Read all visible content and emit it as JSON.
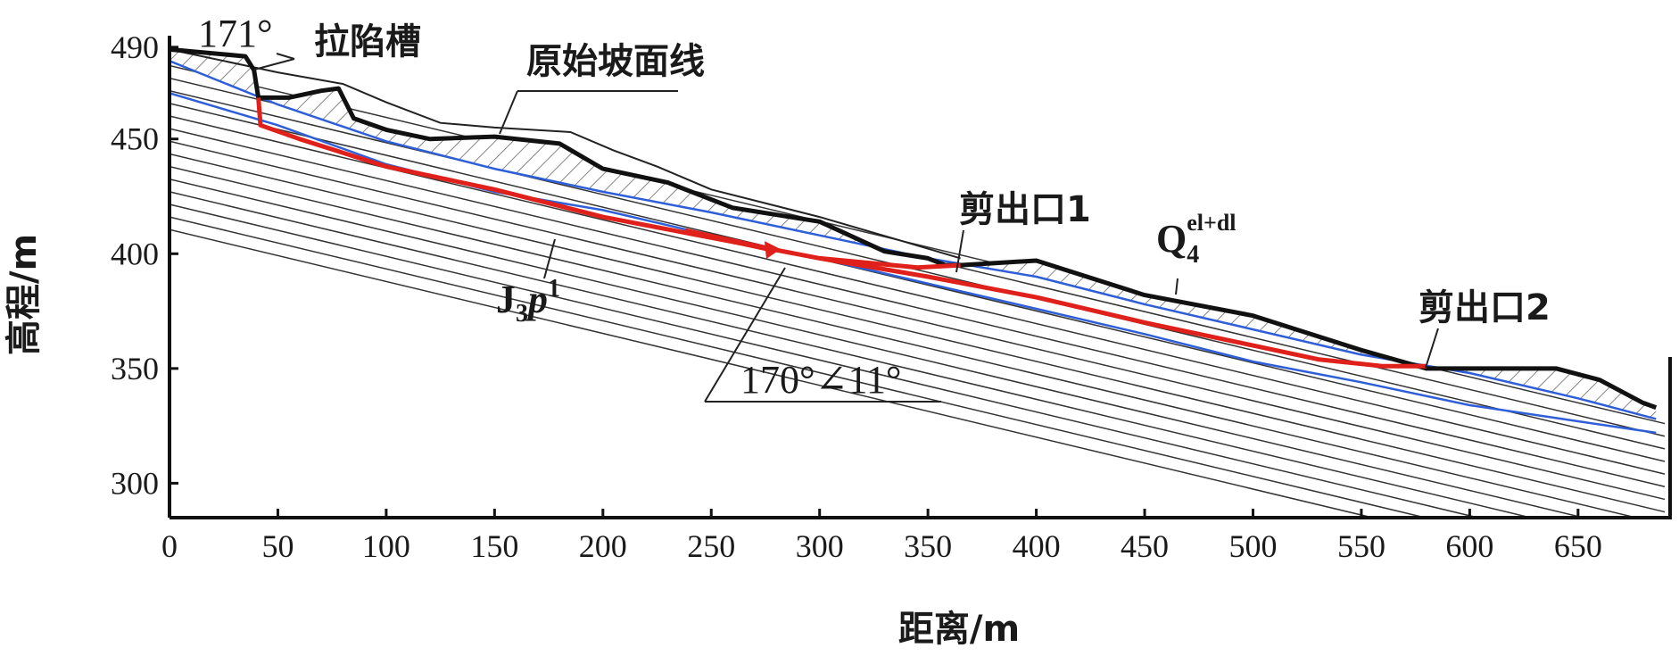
{
  "axes": {
    "x_title": "距离/m",
    "y_title": "高程/m",
    "x_ticks": [
      0,
      50,
      100,
      150,
      200,
      250,
      300,
      350,
      400,
      450,
      500,
      550,
      600,
      650
    ],
    "y_ticks": [
      490,
      450,
      400,
      350,
      300
    ],
    "x_range": [
      0,
      690
    ],
    "y_range": [
      285,
      495
    ]
  },
  "labels": {
    "tension_trough": "拉陷槽",
    "angle_top": "171°",
    "original_slope": "原始坡面线",
    "shear_exit_1": "剪出口1",
    "shear_exit_2": "剪出口2",
    "bedding_attitude": "170°∠11°",
    "formation_base": "J",
    "formation_sub": "3",
    "formation_italic": "p",
    "formation_sup": "1",
    "quaternary_base": "Q",
    "quaternary_sub": "4",
    "quaternary_sup": "el+dl"
  },
  "profile": {
    "ground_surface": [
      [
        0,
        489
      ],
      [
        35,
        486
      ],
      [
        39,
        480
      ],
      [
        41,
        468
      ],
      [
        55,
        468
      ],
      [
        70,
        471
      ],
      [
        78,
        472
      ],
      [
        85,
        459
      ],
      [
        100,
        454
      ],
      [
        120,
        450
      ],
      [
        150,
        451
      ],
      [
        180,
        448
      ],
      [
        200,
        437
      ],
      [
        230,
        431
      ],
      [
        260,
        420
      ],
      [
        300,
        414
      ],
      [
        330,
        401
      ],
      [
        350,
        398
      ],
      [
        358,
        395
      ],
      [
        365,
        395
      ],
      [
        400,
        397
      ],
      [
        450,
        382
      ],
      [
        500,
        373
      ],
      [
        550,
        358
      ],
      [
        580,
        350
      ],
      [
        610,
        350
      ],
      [
        640,
        350
      ],
      [
        660,
        345
      ],
      [
        680,
        335
      ],
      [
        686,
        333
      ]
    ],
    "original_slope": [
      [
        0,
        489
      ],
      [
        50,
        479
      ],
      [
        80,
        474
      ],
      [
        100,
        466
      ],
      [
        125,
        457
      ],
      [
        150,
        455
      ],
      [
        185,
        453
      ],
      [
        205,
        445
      ],
      [
        225,
        438
      ],
      [
        250,
        428
      ],
      [
        300,
        416
      ],
      [
        340,
        405
      ],
      [
        365,
        398
      ]
    ],
    "sliding_surface_1": [
      [
        41,
        468
      ],
      [
        42,
        456
      ],
      [
        60,
        450
      ],
      [
        100,
        438
      ],
      [
        150,
        428
      ],
      [
        200,
        416
      ],
      [
        250,
        407
      ],
      [
        300,
        398
      ],
      [
        345,
        394
      ],
      [
        365,
        395
      ]
    ],
    "sliding_surface_2": [
      [
        300,
        398
      ],
      [
        350,
        390
      ],
      [
        400,
        381
      ],
      [
        450,
        370
      ],
      [
        500,
        360
      ],
      [
        530,
        354
      ],
      [
        560,
        351
      ],
      [
        580,
        351
      ]
    ],
    "blue_contact_1": [
      [
        0,
        484
      ],
      [
        50,
        465
      ],
      [
        100,
        449
      ],
      [
        150,
        437
      ],
      [
        200,
        427
      ],
      [
        250,
        418
      ],
      [
        300,
        408
      ],
      [
        350,
        398
      ],
      [
        400,
        390
      ],
      [
        450,
        378
      ],
      [
        500,
        367
      ],
      [
        550,
        356
      ],
      [
        600,
        348
      ],
      [
        650,
        337
      ],
      [
        686,
        328
      ]
    ],
    "blue_contact_2": [
      [
        0,
        470
      ],
      [
        50,
        456
      ],
      [
        100,
        439
      ],
      [
        150,
        427
      ],
      [
        200,
        419
      ],
      [
        250,
        408
      ],
      [
        300,
        398
      ],
      [
        350,
        387
      ],
      [
        400,
        376
      ],
      [
        450,
        365
      ],
      [
        500,
        353
      ],
      [
        550,
        344
      ],
      [
        600,
        334
      ],
      [
        650,
        327
      ],
      [
        686,
        322
      ]
    ]
  }
}
